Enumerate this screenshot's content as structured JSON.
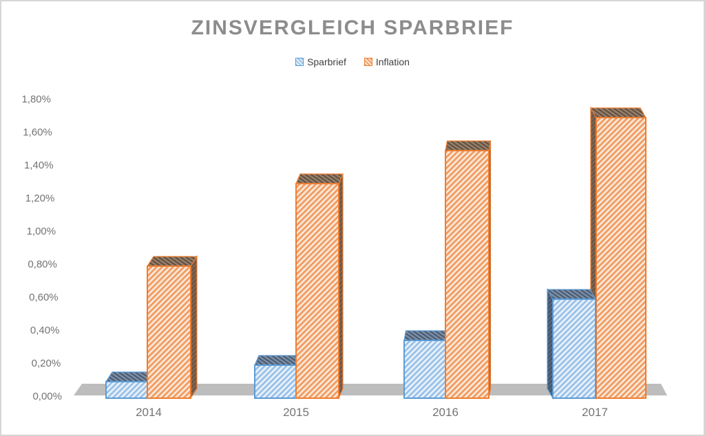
{
  "chart_data": {
    "type": "bar",
    "projection": "3d-perspective",
    "title": "ZINSVERGLEICH SPARBRIEF",
    "categories": [
      "2014",
      "2015",
      "2016",
      "2017"
    ],
    "series": [
      {
        "name": "Sparbrief",
        "values": [
          0.1,
          0.2,
          0.35,
          0.6
        ],
        "colors": {
          "outline": "#5B9BD5",
          "front_bg": "#E8F1FA",
          "front_stripe": "#99C1E8",
          "top_bg": "#7C90A9",
          "top_stripe": "#4A5A70",
          "side_bg": "#44546A",
          "side_stripe": "#566A85"
        }
      },
      {
        "name": "Inflation",
        "values": [
          0.8,
          1.3,
          1.5,
          1.7
        ],
        "colors": {
          "outline": "#ED7D31",
          "front_bg": "#FBE7D7",
          "front_stripe": "#F09C62",
          "top_bg": "#96806E",
          "top_stripe": "#63503E",
          "side_bg": "#6E5646",
          "side_stripe": "#85664F"
        }
      }
    ],
    "xlabel": "",
    "ylabel": "",
    "ylim": [
      0,
      1.8
    ],
    "ytick_values": [
      0,
      0.2,
      0.4,
      0.6,
      0.8,
      1.0,
      1.2,
      1.4,
      1.6,
      1.8
    ],
    "yticks": [
      "0,00%",
      "0,20%",
      "0,40%",
      "0,60%",
      "0,80%",
      "1,00%",
      "1,20%",
      "1,40%",
      "1,60%",
      "1,80%"
    ],
    "grid": false,
    "legend_position": "top",
    "value_format": "percent-german-comma",
    "floor_color": "#BDBDBD",
    "title_color": "#8C8C8C",
    "axis_text_color": "#737373",
    "legend_text_color": "#404040"
  }
}
